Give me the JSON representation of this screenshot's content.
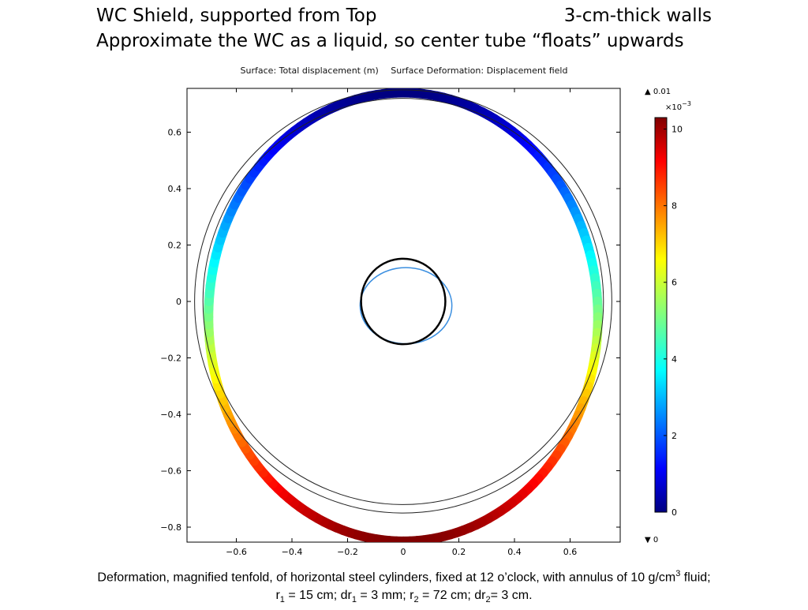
{
  "slide": {
    "title_left": "WC Shield, supported from Top",
    "title_right": "3-cm-thick walls",
    "title_line2": "Approximate the WC as a liquid, so center tube “floats” upwards",
    "caption": {
      "part1": "Deformation, magnified tenfold, of horizontal steel cylinders, fixed at 12 o’clock, with annulus of 10 g/cm",
      "sup1": "3",
      "part2": " fluid;",
      "r1_sym": "r",
      "r1_sub": "1",
      "r1_val": " = 15 cm; ",
      "dr1_sym": "dr",
      "dr1_sub": "1",
      "dr1_val": " = 3 mm; ",
      "r2_sym": "r",
      "r2_sub": "2",
      "r2_val": " = 72 cm; ",
      "dr2_sym": "dr",
      "dr2_sub": "2",
      "dr2_val": "= 3 cm."
    }
  },
  "chart_data": {
    "type": "contour",
    "surface_label": "Surface: Total displacement (m)",
    "deformation_label": "Surface Deformation: Displacement field",
    "xlim": [
      -0.78,
      0.78
    ],
    "ylim": [
      -0.86,
      0.76
    ],
    "x_ticks": [
      -0.6,
      -0.4,
      -0.2,
      0,
      0.2,
      0.4,
      0.6
    ],
    "x_tick_labels": [
      "−0.6",
      "−0.4",
      "−0.2",
      "0",
      "0.2",
      "0.4",
      "0.6"
    ],
    "y_ticks": [
      -0.8,
      -0.6,
      -0.4,
      -0.2,
      0,
      0.2,
      0.4,
      0.6
    ],
    "y_tick_labels": [
      "−0.8",
      "−0.6",
      "−0.4",
      "−0.2",
      "0",
      "0.2",
      "0.4",
      "0.6"
    ],
    "colorbar": {
      "max_label": "▲ 0.01",
      "min_label": "▼ 0",
      "multiplier_base": "×10",
      "multiplier_exp": "−3",
      "range": [
        0,
        10.3
      ],
      "ticks": [
        0,
        2,
        4,
        6,
        8,
        10
      ],
      "tick_labels": [
        "0",
        "2",
        "4",
        "6",
        "8",
        "10"
      ],
      "colormap": "jet"
    },
    "undeformed": {
      "outer_cylinder_radii": [
        0.72,
        0.75
      ],
      "inner_cylinder_radii": [
        0.15,
        0.153
      ]
    },
    "deformed_outer": {
      "center": [
        0,
        -0.055
      ],
      "rx": 0.7,
      "ry": 0.795,
      "top_point_y": 0.74,
      "bottom_point_y": -0.85,
      "displacement_top_x1e3": 0,
      "displacement_bottom_x1e3": 10.3
    },
    "deformed_inner": {
      "center": [
        0.01,
        -0.015
      ],
      "rx": 0.165,
      "ry": 0.135,
      "color": "#3b8fe0"
    }
  }
}
